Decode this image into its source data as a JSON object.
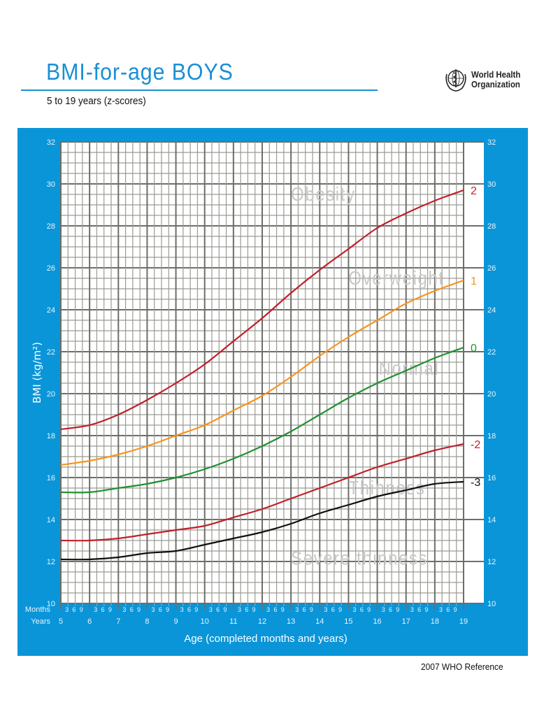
{
  "header": {
    "title": "BMI-for-age  BOYS",
    "subtitle": "5 to 19 years (z-scores)",
    "org_line1": "World Health",
    "org_line2": "Organization",
    "logo_icon": "who-emblem-icon"
  },
  "footer": {
    "reference": "2007  WHO Reference"
  },
  "colors": {
    "panel_blue": "#0a95d9",
    "title_blue": "#1a8fd4",
    "z2": "#c0202a",
    "z1": "#f7941d",
    "z0": "#1e9130",
    "zm2": "#c0202a",
    "zm3": "#111111",
    "zone_text": "#c8c8c8",
    "grid_major": "#6e6e68",
    "grid_minor": "#9a9a94"
  },
  "chart_data": {
    "type": "line",
    "title": "BMI-for-age BOYS",
    "subtitle": "5 to 19 years (z-scores)",
    "xlabel": "Age (completed months and years)",
    "ylabel": "BMI (kg/m²)",
    "xlim": [
      5,
      19
    ],
    "ylim": [
      10,
      32
    ],
    "grid": true,
    "x_tick_row_labels": {
      "months": "Months",
      "years": "Years"
    },
    "month_ticks": [
      "3",
      "6",
      "9"
    ],
    "x": [
      5,
      6,
      7,
      8,
      9,
      10,
      11,
      12,
      13,
      14,
      15,
      16,
      17,
      18,
      19
    ],
    "y_ticks": [
      10,
      12,
      14,
      16,
      18,
      20,
      22,
      24,
      26,
      28,
      30,
      32
    ],
    "series": [
      {
        "name": "2",
        "label": "2",
        "color": "#c0202a",
        "values": [
          18.3,
          18.5,
          19.0,
          19.7,
          20.5,
          21.4,
          22.5,
          23.6,
          24.8,
          25.9,
          26.9,
          27.9,
          28.6,
          29.2,
          29.7
        ]
      },
      {
        "name": "1",
        "label": "1",
        "color": "#f7941d",
        "values": [
          16.6,
          16.8,
          17.1,
          17.5,
          18.0,
          18.5,
          19.2,
          19.9,
          20.8,
          21.8,
          22.7,
          23.5,
          24.3,
          24.9,
          25.4
        ]
      },
      {
        "name": "0",
        "label": "0",
        "color": "#1e9130",
        "values": [
          15.3,
          15.3,
          15.5,
          15.7,
          16.0,
          16.4,
          16.9,
          17.5,
          18.2,
          19.0,
          19.8,
          20.5,
          21.1,
          21.7,
          22.2
        ]
      },
      {
        "name": "-2",
        "label": "-2",
        "color": "#c0202a",
        "values": [
          13.0,
          13.0,
          13.1,
          13.3,
          13.5,
          13.7,
          14.1,
          14.5,
          15.0,
          15.5,
          16.0,
          16.5,
          16.9,
          17.3,
          17.6
        ]
      },
      {
        "name": "-3",
        "label": "-3",
        "color": "#111111",
        "values": [
          12.1,
          12.1,
          12.2,
          12.4,
          12.5,
          12.8,
          13.1,
          13.4,
          13.8,
          14.3,
          14.7,
          15.1,
          15.4,
          15.7,
          15.8
        ]
      }
    ],
    "zone_labels": [
      {
        "text": "Obesity",
        "age": 13.0,
        "bmi": 29.5
      },
      {
        "text": "Overweight",
        "age": 15.0,
        "bmi": 25.5
      },
      {
        "text": "Normal",
        "age": 16.05,
        "bmi": 21.2
      },
      {
        "text": "Thinness",
        "age": 15.0,
        "bmi": 15.5
      },
      {
        "text": "Severe thinness",
        "age": 13.0,
        "bmi": 12.15
      }
    ]
  }
}
